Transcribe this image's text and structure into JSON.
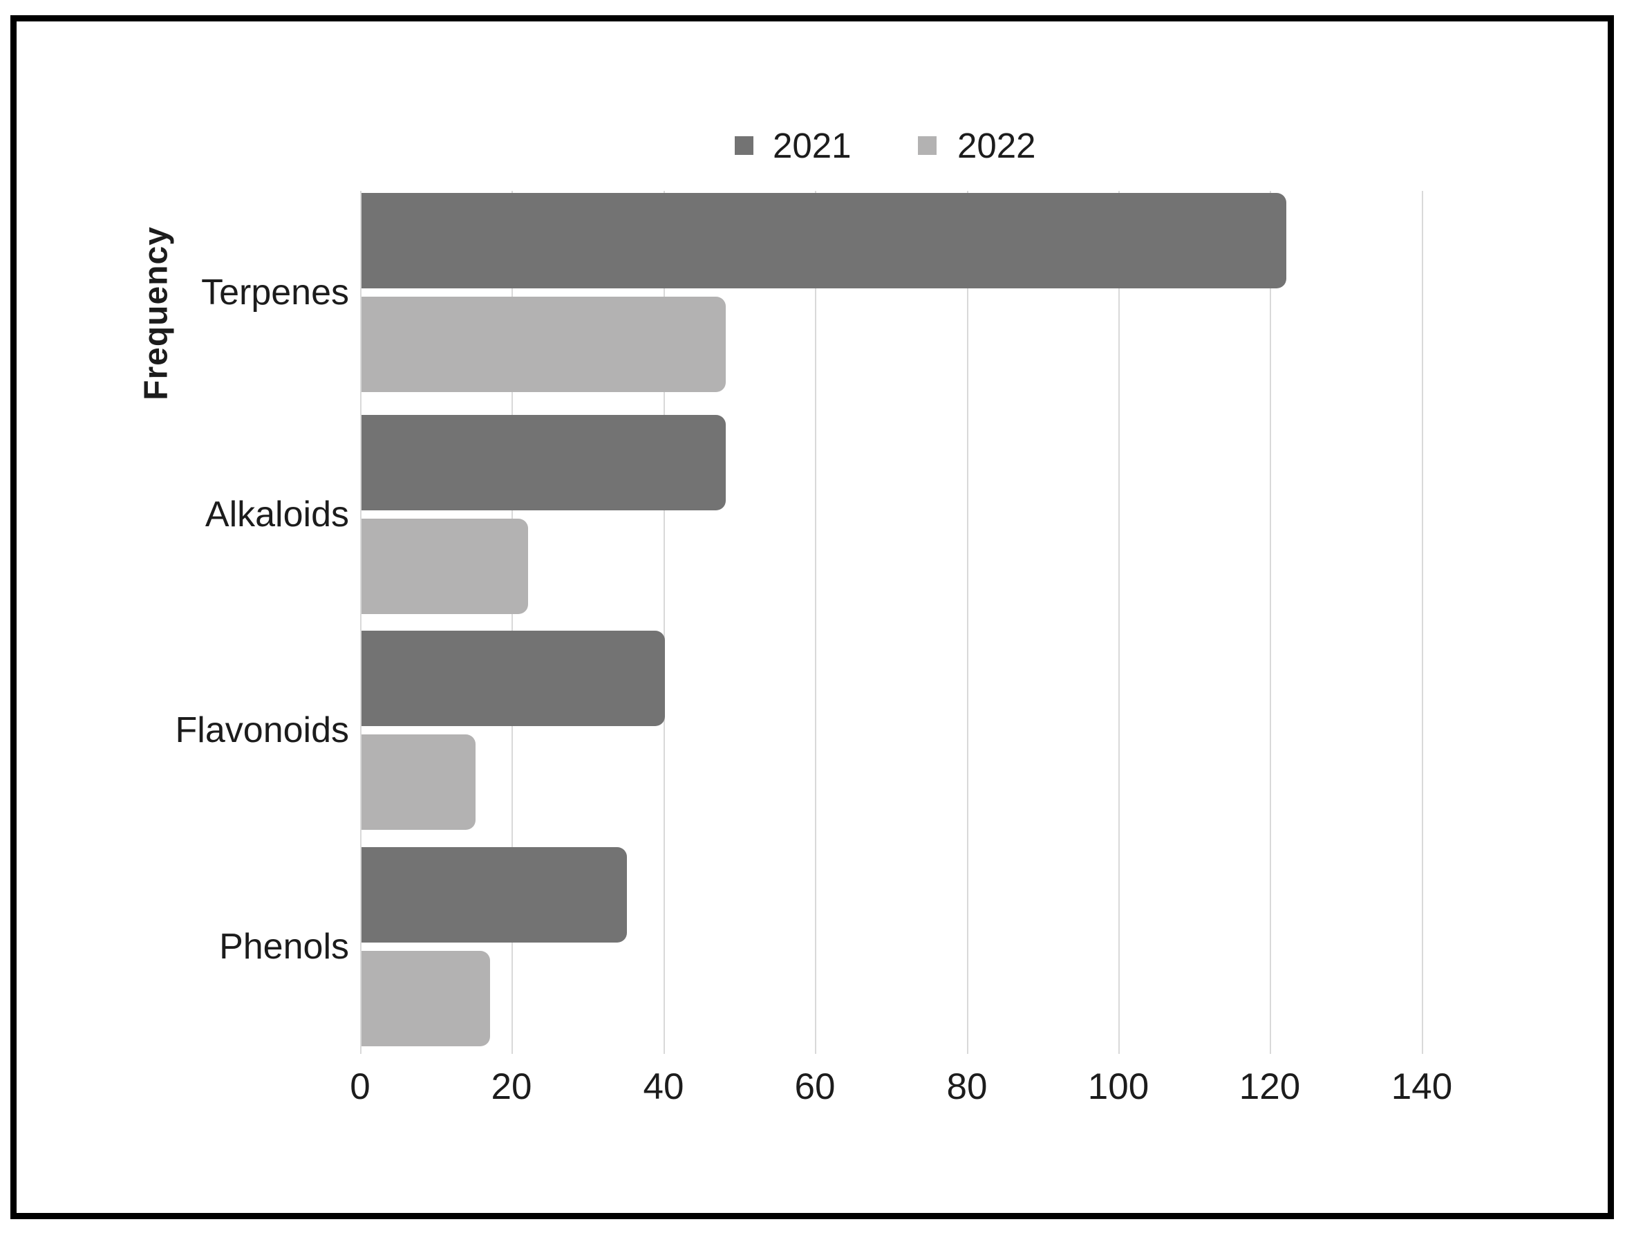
{
  "chart_data": {
    "type": "bar",
    "orientation": "horizontal",
    "title": "",
    "xlabel": "",
    "ylabel": "Frequency",
    "categories": [
      "Terpenes",
      "Alkaloids",
      "Flavonoids",
      "Phenols"
    ],
    "series": [
      {
        "name": "2021",
        "color": "#737373",
        "values": [
          122,
          48,
          40,
          35
        ]
      },
      {
        "name": "2022",
        "color": "#b3b2b2",
        "values": [
          48,
          22,
          15,
          17
        ]
      }
    ],
    "xlim": [
      0,
      140
    ],
    "xticks": [
      0,
      20,
      40,
      60,
      80,
      100,
      120,
      140
    ],
    "xtick_labels": [
      "0",
      "20",
      "40",
      "60",
      "80",
      "100",
      "120",
      "140"
    ],
    "grid": true,
    "gridline_color": "#d9d9d9",
    "legend_position": "top-center"
  },
  "legend": {
    "items": [
      {
        "label": "2021",
        "color": "#737373"
      },
      {
        "label": "2022",
        "color": "#b3b2b2"
      }
    ]
  },
  "colors": {
    "background": "#ffffff",
    "border": "#000000",
    "text": "#1c1c1c"
  }
}
